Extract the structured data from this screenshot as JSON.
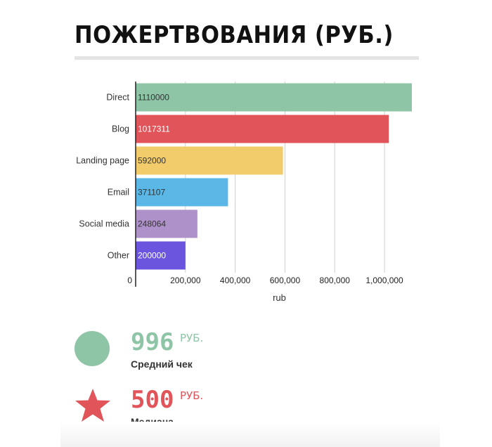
{
  "title": "ПОЖЕРТВОВАНИЯ (РУБ.)",
  "chart_data": {
    "type": "bar",
    "orientation": "horizontal",
    "categories": [
      "Direct",
      "Blog",
      "Landing page",
      "Email",
      "Social media",
      "Other"
    ],
    "values": [
      1110000,
      1017311,
      592000,
      371107,
      248064,
      200000
    ],
    "value_labels": [
      "1110000",
      "1017311",
      "592000",
      "371107",
      "248064",
      "200000"
    ],
    "colors": [
      "#8ec5a6",
      "#e0545a",
      "#f2cc6b",
      "#5bb7e6",
      "#ae91c8",
      "#6b55de"
    ],
    "label_colors": [
      "#333333",
      "#ffffff",
      "#333333",
      "#333333",
      "#333333",
      "#ffffff"
    ],
    "xticks": [
      0,
      200000,
      400000,
      600000,
      800000,
      1000000
    ],
    "xtick_labels": [
      "0",
      "200,000",
      "400,000",
      "600,000",
      "800,000",
      "1,000,000"
    ],
    "xlim": [
      0,
      1110000
    ],
    "xlabel": "rub",
    "grid": true
  },
  "stats": [
    {
      "value": "996",
      "unit": "РУБ.",
      "label": "Средний чек",
      "color": "#8ec5a6",
      "icon": "circle-icon"
    },
    {
      "value": "500",
      "unit": "РУБ.",
      "label": "Медиана",
      "color": "#e0545a",
      "icon": "star-icon"
    }
  ]
}
